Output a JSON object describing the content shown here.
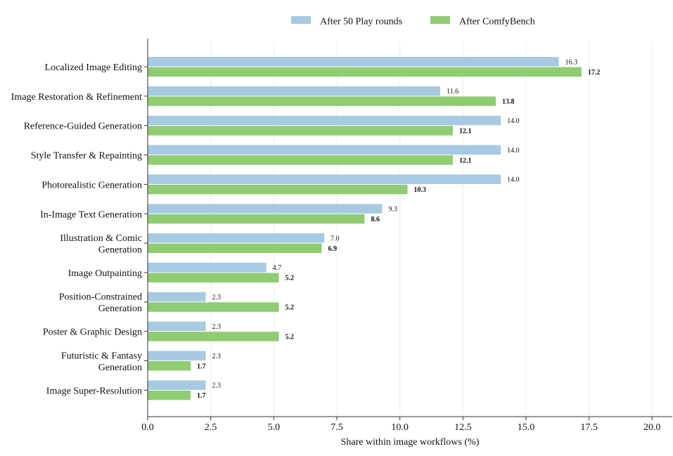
{
  "chart_data": {
    "type": "bar",
    "orientation": "horizontal",
    "categories": [
      [
        "Localized Image Editing"
      ],
      [
        "Image Restoration & Refinement"
      ],
      [
        "Reference-Guided Generation"
      ],
      [
        "Style Transfer & Repainting"
      ],
      [
        "Photorealistic Generation"
      ],
      [
        "In-Image Text Generation"
      ],
      [
        "Illustration & Comic",
        "Generation"
      ],
      [
        "Image Outpainting"
      ],
      [
        "Position-Constrained",
        "Generation"
      ],
      [
        "Poster & Graphic Design"
      ],
      [
        "Futuristic & Fantasy",
        "Generation"
      ],
      [
        "Image Super-Resolution"
      ]
    ],
    "series": [
      {
        "name": "After 50 Play rounds",
        "color": "#a6cae2",
        "values": [
          16.3,
          11.6,
          14.0,
          14.0,
          14.0,
          9.3,
          7.0,
          4.7,
          2.3,
          2.3,
          2.3,
          2.3
        ],
        "labels": [
          "16.3",
          "11.6",
          "14.0",
          "14.0",
          "14.0",
          "9.3",
          "7.0",
          "4.7",
          "2.3",
          "2.3",
          "2.3",
          "2.3"
        ],
        "label_weight": "normal"
      },
      {
        "name": "After ComfyBench",
        "color": "#8fcc72",
        "values": [
          17.2,
          13.8,
          12.1,
          12.1,
          10.3,
          8.6,
          6.9,
          5.2,
          5.2,
          5.2,
          1.7,
          1.7
        ],
        "labels": [
          "17.2",
          "13.8",
          "12.1",
          "12.1",
          "10.3",
          "8.6",
          "6.9",
          "5.2",
          "5.2",
          "5.2",
          "1.7",
          "1.7"
        ],
        "label_weight": "bold"
      }
    ],
    "xlabel": "Share within image workflows (%)",
    "ylabel": "",
    "xlim": [
      0,
      20.8
    ],
    "xticks": [
      0,
      2.5,
      5,
      7.5,
      10,
      12.5,
      15,
      17.5,
      20
    ],
    "xtick_labels": [
      "0.0",
      "2.5",
      "5.0",
      "7.5",
      "10.0",
      "12.5",
      "15.0",
      "17.5",
      "20.0"
    ],
    "grid": "vertical",
    "legend_position": "top-right"
  }
}
